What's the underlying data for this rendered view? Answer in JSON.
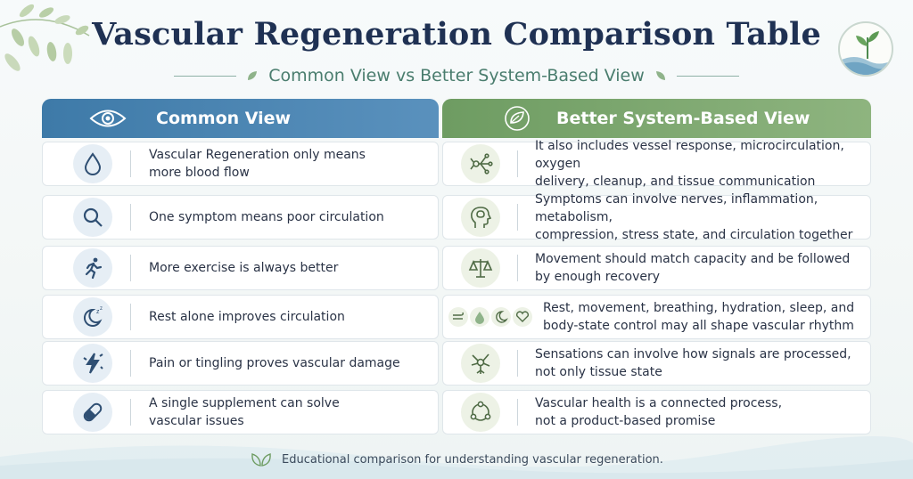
{
  "header": {
    "title": "Vascular Regeneration Comparison Table",
    "subtitle": "Common View vs Better System-Based View"
  },
  "columns": {
    "left": {
      "label": "Common View",
      "icon": "eye-icon",
      "color": "#4a86b4"
    },
    "right": {
      "label": "Better System-Based View",
      "icon": "leaf-icon",
      "color": "#7ea870"
    }
  },
  "rows": [
    {
      "common": "Vascular Regeneration only means\nmore blood flow",
      "common_icon": "water-drop-icon",
      "better": "It also includes vessel response, microcirculation, oxygen\ndelivery, cleanup, and tissue communication",
      "better_icon": "network-icon"
    },
    {
      "common": "One symptom means poor circulation",
      "common_icon": "magnifier-icon",
      "better": "Symptoms can involve nerves, inflammation, metabolism,\ncompression, stress state, and circulation together",
      "better_icon": "head-brain-icon"
    },
    {
      "common": "More exercise is always better",
      "common_icon": "runner-icon",
      "better": "Movement should match capacity and be followed\nby enough recovery",
      "better_icon": "balance-scale-icon"
    },
    {
      "common": "Rest alone improves circulation",
      "common_icon": "sleep-moon-icon",
      "better": "Rest, movement, breathing, hydration, sleep, and\nbody-state control may all shape vascular rhythm",
      "better_icon": "wind-drop-moon-heart-icons"
    },
    {
      "common": "Pain or tingling proves vascular damage",
      "common_icon": "lightning-icon",
      "better": "Sensations can involve how signals are processed,\nnot only tissue state",
      "better_icon": "neuron-icon"
    },
    {
      "common": "A single supplement can solve\nvascular issues",
      "common_icon": "capsule-icon",
      "better": "Vascular health is a connected process,\nnot a product-based promise",
      "better_icon": "cycle-icon"
    }
  ],
  "footer": {
    "text": "Educational comparison for understanding vascular regeneration.",
    "icon": "leaves-icon"
  }
}
